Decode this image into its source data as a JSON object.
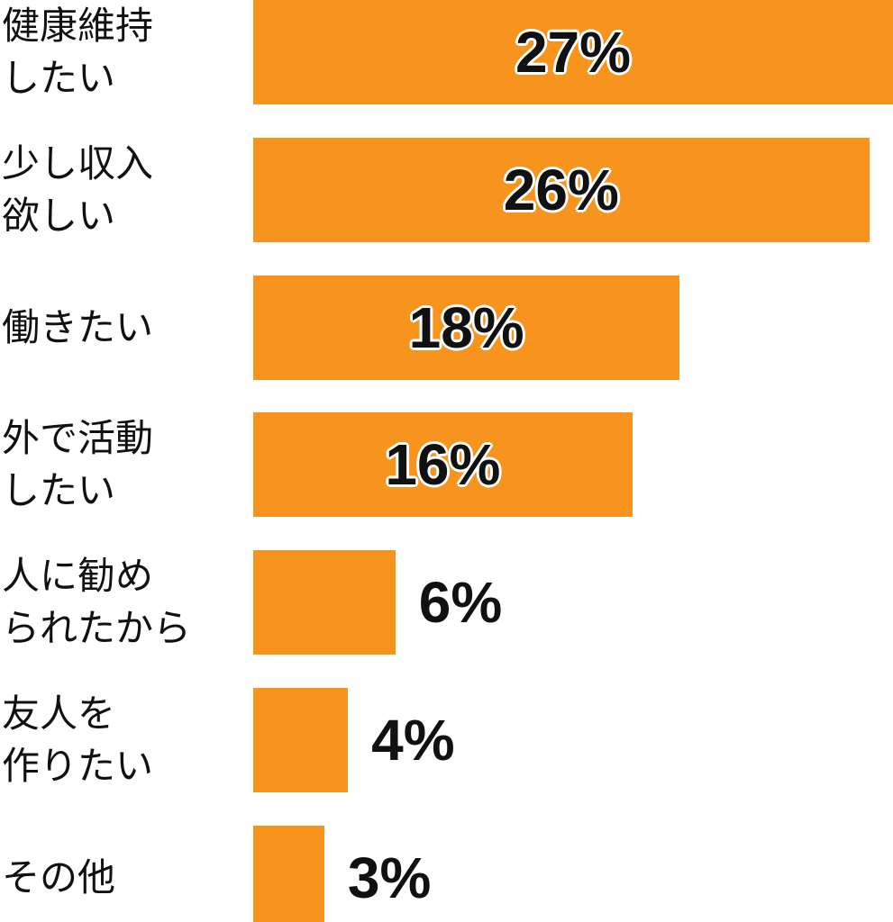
{
  "chart_data": {
    "type": "bar",
    "orientation": "horizontal",
    "categories": [
      "健康維持\nしたい",
      "少し収入\n欲しい",
      "働きたい",
      "外で活動\nしたい",
      "人に勧め\nられたから",
      "友人を\n作りたい",
      "その他"
    ],
    "values": [
      27,
      26,
      18,
      16,
      6,
      4,
      3
    ],
    "value_labels": [
      "27%",
      "26%",
      "18%",
      "16%",
      "6%",
      "4%",
      "3%"
    ],
    "color": "#f7941d"
  }
}
